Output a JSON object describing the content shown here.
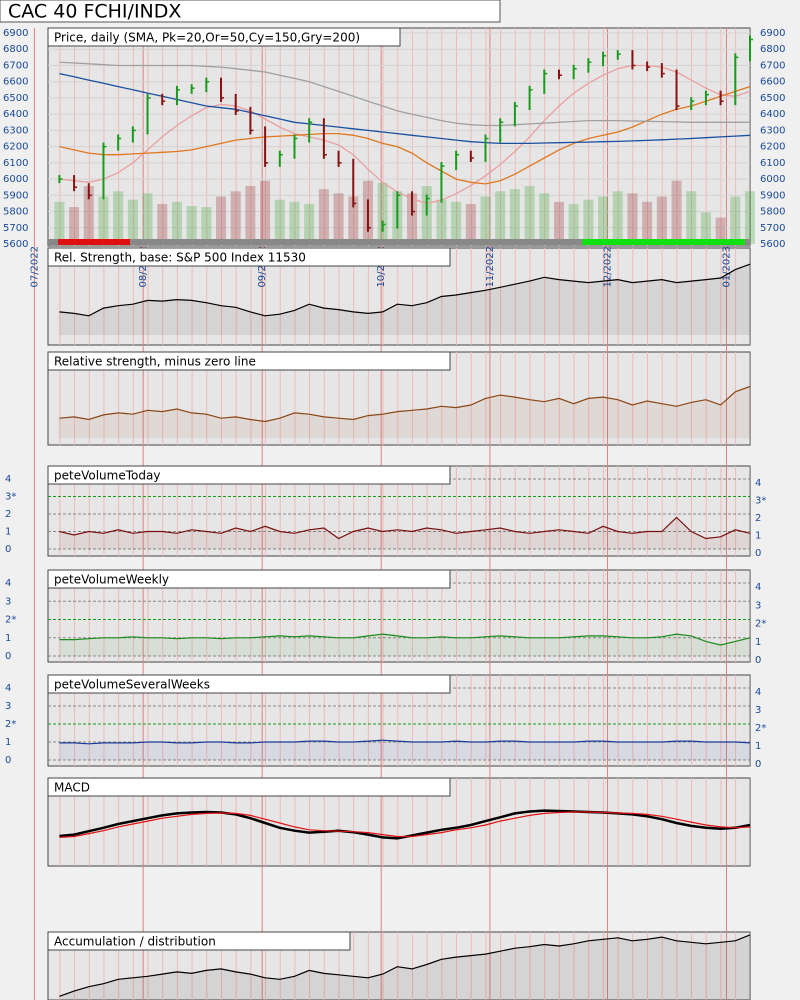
{
  "title": "CAC 40 FCHI/INDX",
  "chart_data": [
    {
      "type": "candlestick",
      "title": "Price, daily (SMA, Pk=20,Or=50,Cy=150,Gry=200)",
      "xlim": [
        -2,
        47
      ],
      "xticks": [
        {
          "value": -1.7,
          "label": "07/2022"
        },
        {
          "value": 5.7,
          "label": "08/2022"
        },
        {
          "value": 13.8,
          "label": "09/2022"
        },
        {
          "value": 21.9,
          "label": "10/2022"
        },
        {
          "value": 29.3,
          "label": "11/2022"
        },
        {
          "value": 37.3,
          "label": "12/2022"
        },
        {
          "value": 45.4,
          "label": "01/2023"
        }
      ],
      "ylim": [
        5600,
        6900
      ],
      "yticks": [
        5600,
        5700,
        5800,
        5900,
        6000,
        6100,
        6200,
        6300,
        6400,
        6500,
        6600,
        6700,
        6800,
        6900
      ],
      "up_color": "#1a9a1a",
      "down_color": "#8b1010",
      "close": [
        6000,
        5950,
        5900,
        6200,
        6250,
        6300,
        6500,
        6480,
        6550,
        6560,
        6600,
        6500,
        6420,
        6300,
        6100,
        6150,
        6250,
        6350,
        6150,
        6100,
        5850,
        5700,
        5720,
        5900,
        5800,
        5880,
        6080,
        6150,
        6130,
        6250,
        6350,
        6450,
        6550,
        6650,
        6640,
        6680,
        6720,
        6760,
        6770,
        6700,
        6690,
        6650,
        6450,
        6480,
        6520,
        6480,
        6750,
        6860
      ],
      "volume_ylim": [
        0,
        100
      ],
      "volume": [
        40,
        35,
        55,
        45,
        50,
        42,
        48,
        38,
        40,
        36,
        35,
        45,
        50,
        55,
        60,
        42,
        40,
        38,
        52,
        48,
        45,
        60,
        58,
        50,
        48,
        55,
        42,
        40,
        38,
        45,
        50,
        52,
        55,
        48,
        40,
        38,
        42,
        45,
        50,
        48,
        40,
        45,
        60,
        50,
        30,
        25,
        45,
        50
      ],
      "series": [
        {
          "color": "#e8a0a0",
          "values": [
            6000,
            5990,
            5980,
            6000,
            6040,
            6100,
            6180,
            6260,
            6330,
            6390,
            6440,
            6460,
            6450,
            6420,
            6370,
            6320,
            6280,
            6260,
            6240,
            6210,
            6150,
            6060,
            5980,
            5920,
            5880,
            5850,
            5870,
            5910,
            5960,
            6020,
            6090,
            6170,
            6260,
            6360,
            6450,
            6530,
            6590,
            6640,
            6680,
            6700,
            6700,
            6690,
            6660,
            6610,
            6560,
            6520,
            6510,
            6540
          ]
        },
        {
          "color": "#e07820",
          "values": [
            6200,
            6180,
            6160,
            6150,
            6150,
            6155,
            6160,
            6165,
            6170,
            6180,
            6200,
            6220,
            6240,
            6250,
            6260,
            6265,
            6270,
            6275,
            6280,
            6280,
            6270,
            6250,
            6220,
            6200,
            6160,
            6100,
            6050,
            6000,
            5980,
            5970,
            5990,
            6030,
            6080,
            6130,
            6180,
            6220,
            6250,
            6270,
            6290,
            6320,
            6360,
            6400,
            6430,
            6450,
            6480,
            6510,
            6540,
            6570
          ]
        },
        {
          "color": "#1850a0",
          "values": [
            6650,
            6630,
            6610,
            6590,
            6570,
            6550,
            6530,
            6510,
            6490,
            6470,
            6450,
            6440,
            6430,
            6410,
            6390,
            6370,
            6350,
            6340,
            6330,
            6320,
            6310,
            6300,
            6290,
            6280,
            6270,
            6260,
            6250,
            6240,
            6230,
            6225,
            6220,
            6220,
            6220,
            6222,
            6224,
            6226,
            6228,
            6230,
            6232,
            6235,
            6238,
            6242,
            6246,
            6250,
            6255,
            6260,
            6265,
            6270
          ]
        },
        {
          "color": "#a0a0a0",
          "values": [
            6720,
            6715,
            6710,
            6705,
            6700,
            6700,
            6700,
            6700,
            6700,
            6700,
            6695,
            6690,
            6680,
            6670,
            6660,
            6640,
            6620,
            6600,
            6570,
            6540,
            6510,
            6480,
            6450,
            6420,
            6400,
            6380,
            6360,
            6345,
            6335,
            6330,
            6330,
            6335,
            6340,
            6345,
            6350,
            6355,
            6360,
            6360,
            6360,
            6358,
            6356,
            6354,
            6352,
            6350,
            6350,
            6350,
            6350,
            6350
          ]
        }
      ]
    },
    {
      "type": "line",
      "title": "Rel. Strength, base: S&P 500 Index 11530",
      "ylim": [
        0,
        100
      ],
      "series": [
        {
          "color": "#000000",
          "values": [
            30,
            28,
            25,
            35,
            38,
            40,
            45,
            44,
            46,
            45,
            42,
            38,
            36,
            30,
            25,
            27,
            32,
            40,
            35,
            33,
            30,
            28,
            30,
            40,
            38,
            42,
            50,
            52,
            55,
            58,
            62,
            66,
            70,
            75,
            72,
            70,
            68,
            70,
            72,
            68,
            70,
            72,
            68,
            70,
            72,
            74,
            85,
            92
          ]
        }
      ]
    },
    {
      "type": "line",
      "title": "Relative strength, minus zero line",
      "ylim": [
        0,
        100
      ],
      "series": [
        {
          "color": "#8b4513",
          "values": [
            30,
            32,
            28,
            35,
            38,
            36,
            42,
            40,
            44,
            38,
            36,
            30,
            32,
            28,
            25,
            30,
            38,
            36,
            32,
            30,
            28,
            34,
            36,
            40,
            42,
            44,
            48,
            46,
            50,
            60,
            65,
            62,
            58,
            55,
            60,
            52,
            60,
            62,
            58,
            50,
            56,
            52,
            48,
            54,
            58,
            50,
            70,
            78
          ]
        }
      ]
    },
    {
      "type": "line",
      "title": "peteVolumeToday",
      "ylim": [
        0,
        4
      ],
      "yticks": [
        0,
        1,
        2,
        {
          "value": 3,
          "label": "3*"
        },
        4
      ],
      "series": [
        {
          "color": "#7a1010",
          "values": [
            1,
            0.8,
            1,
            0.9,
            1.1,
            0.9,
            1,
            1,
            0.9,
            1.1,
            1,
            0.9,
            1.2,
            1,
            1.3,
            1,
            0.9,
            1.1,
            1.2,
            0.6,
            1,
            1.2,
            1,
            1.1,
            1,
            1.2,
            1.1,
            0.9,
            1,
            1.1,
            1.2,
            1,
            0.9,
            1,
            1.1,
            1,
            0.9,
            1.3,
            1,
            0.9,
            1,
            1,
            1.8,
            1,
            0.6,
            0.7,
            1.1,
            0.9
          ]
        }
      ]
    },
    {
      "type": "line",
      "title": "peteVolumeWeekly",
      "ylim": [
        0,
        4
      ],
      "yticks": [
        0,
        1,
        {
          "value": 2,
          "label": "2*"
        },
        3,
        4
      ],
      "series": [
        {
          "color": "#1a8a1a",
          "values": [
            0.9,
            0.9,
            0.95,
            1,
            1,
            1.05,
            1,
            1,
            0.95,
            1,
            1,
            0.95,
            1,
            1,
            1.05,
            1.1,
            1.05,
            1.1,
            1.05,
            1,
            1,
            1.1,
            1.2,
            1.1,
            1,
            1,
            1.05,
            1,
            1,
            1.05,
            1.1,
            1.05,
            1,
            1,
            1,
            1.05,
            1.1,
            1.1,
            1.05,
            1,
            1,
            1.05,
            1.2,
            1.1,
            0.8,
            0.6,
            0.8,
            1
          ]
        }
      ]
    },
    {
      "type": "line",
      "title": "peteVolumeSeveralWeeks",
      "ylim": [
        0,
        4
      ],
      "yticks": [
        0,
        1,
        {
          "value": 2,
          "label": "2*"
        },
        3,
        4
      ],
      "series": [
        {
          "color": "#1a3a9a",
          "values": [
            0.95,
            0.95,
            0.9,
            0.95,
            0.95,
            0.95,
            1,
            1,
            0.95,
            0.95,
            1,
            1,
            0.95,
            0.95,
            1,
            1,
            1,
            1.05,
            1.05,
            1,
            1,
            1.05,
            1.1,
            1.05,
            1,
            1,
            1,
            1.05,
            1,
            1,
            1.05,
            1.05,
            1,
            1,
            1,
            1,
            1.05,
            1.05,
            1,
            1,
            1,
            1,
            1.05,
            1.05,
            1,
            1,
            1,
            0.95
          ]
        }
      ]
    },
    {
      "type": "line",
      "title": "MACD",
      "ylim": [
        0,
        100
      ],
      "series": [
        {
          "color": "#000000",
          "values": [
            25,
            28,
            35,
            42,
            50,
            56,
            62,
            68,
            72,
            74,
            75,
            74,
            70,
            62,
            52,
            42,
            36,
            32,
            34,
            36,
            33,
            28,
            22,
            20,
            26,
            32,
            38,
            42,
            48,
            56,
            64,
            72,
            76,
            78,
            77,
            76,
            75,
            74,
            72,
            70,
            66,
            60,
            52,
            46,
            42,
            40,
            42,
            48
          ]
        },
        {
          "color": "#e01010",
          "values": [
            22,
            24,
            30,
            36,
            44,
            50,
            56,
            62,
            66,
            70,
            72,
            73,
            72,
            68,
            60,
            52,
            44,
            38,
            36,
            35,
            34,
            32,
            28,
            24,
            24,
            28,
            32,
            38,
            42,
            48,
            56,
            62,
            68,
            72,
            74,
            75,
            75,
            74,
            73,
            72,
            70,
            66,
            60,
            54,
            48,
            44,
            42,
            44
          ]
        }
      ]
    },
    {
      "type": "line",
      "title": "Accumulation / distribution",
      "ylim": [
        0,
        100
      ],
      "series": [
        {
          "color": "#000000",
          "values": [
            5,
            12,
            18,
            22,
            28,
            30,
            32,
            35,
            38,
            36,
            40,
            42,
            38,
            35,
            30,
            28,
            32,
            40,
            36,
            34,
            32,
            30,
            35,
            45,
            42,
            48,
            55,
            58,
            60,
            62,
            66,
            70,
            72,
            75,
            73,
            76,
            80,
            82,
            84,
            80,
            82,
            85,
            80,
            78,
            76,
            78,
            80,
            88
          ]
        }
      ]
    }
  ]
}
